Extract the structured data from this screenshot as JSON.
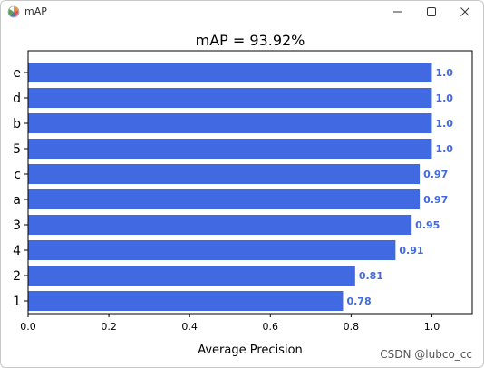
{
  "window": {
    "title": "mAP",
    "app_icon": "matplotlib-logo-icon",
    "controls": [
      "minimize-icon",
      "maximize-icon",
      "close-icon"
    ]
  },
  "watermark": "CSDN @lubco_cc",
  "colors": {
    "bar": "#4169e1",
    "label": "#4169e1",
    "axis": "#000000"
  },
  "chart_data": {
    "type": "bar",
    "orientation": "horizontal",
    "title": "mAP = 93.92%",
    "xlabel": "Average Precision",
    "ylabel": "",
    "xlim": [
      0.0,
      1.1
    ],
    "xticks": [
      "0.0",
      "0.2",
      "0.4",
      "0.6",
      "0.8",
      "1.0"
    ],
    "grid": false,
    "categories": [
      "e",
      "d",
      "b",
      "5",
      "c",
      "a",
      "3",
      "4",
      "2",
      "1"
    ],
    "values": [
      1.0,
      1.0,
      1.0,
      1.0,
      0.97,
      0.97,
      0.95,
      0.91,
      0.81,
      0.78
    ],
    "value_labels": [
      "1.0",
      "1.0",
      "1.0",
      "1.0",
      "0.97",
      "0.97",
      "0.95",
      "0.91",
      "0.81",
      "0.78"
    ]
  }
}
